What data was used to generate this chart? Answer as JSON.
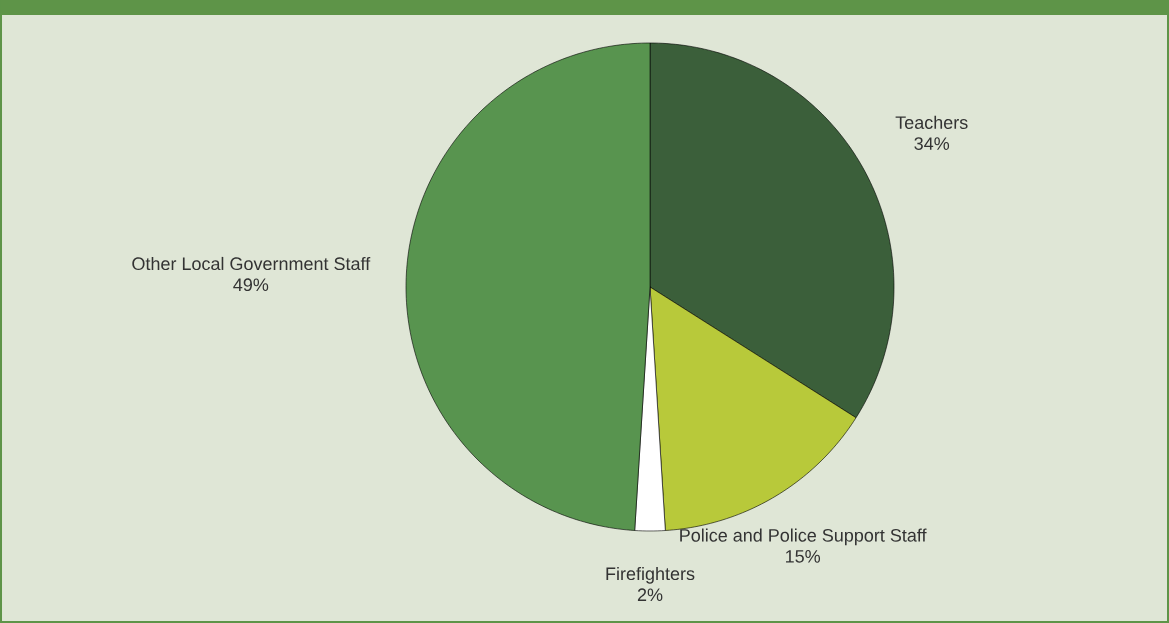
{
  "chart_data": {
    "type": "pie",
    "categories": [
      "Teachers",
      "Police and Police Support Staff",
      "Firefighters",
      "Other Local Government Staff"
    ],
    "values": [
      34,
      15,
      2,
      49
    ],
    "value_labels": [
      "34%",
      "15%",
      "2%",
      "49%"
    ],
    "colors": [
      "#3b5f3a",
      "#b8c93a",
      "#ffffff",
      "#58944f"
    ]
  }
}
